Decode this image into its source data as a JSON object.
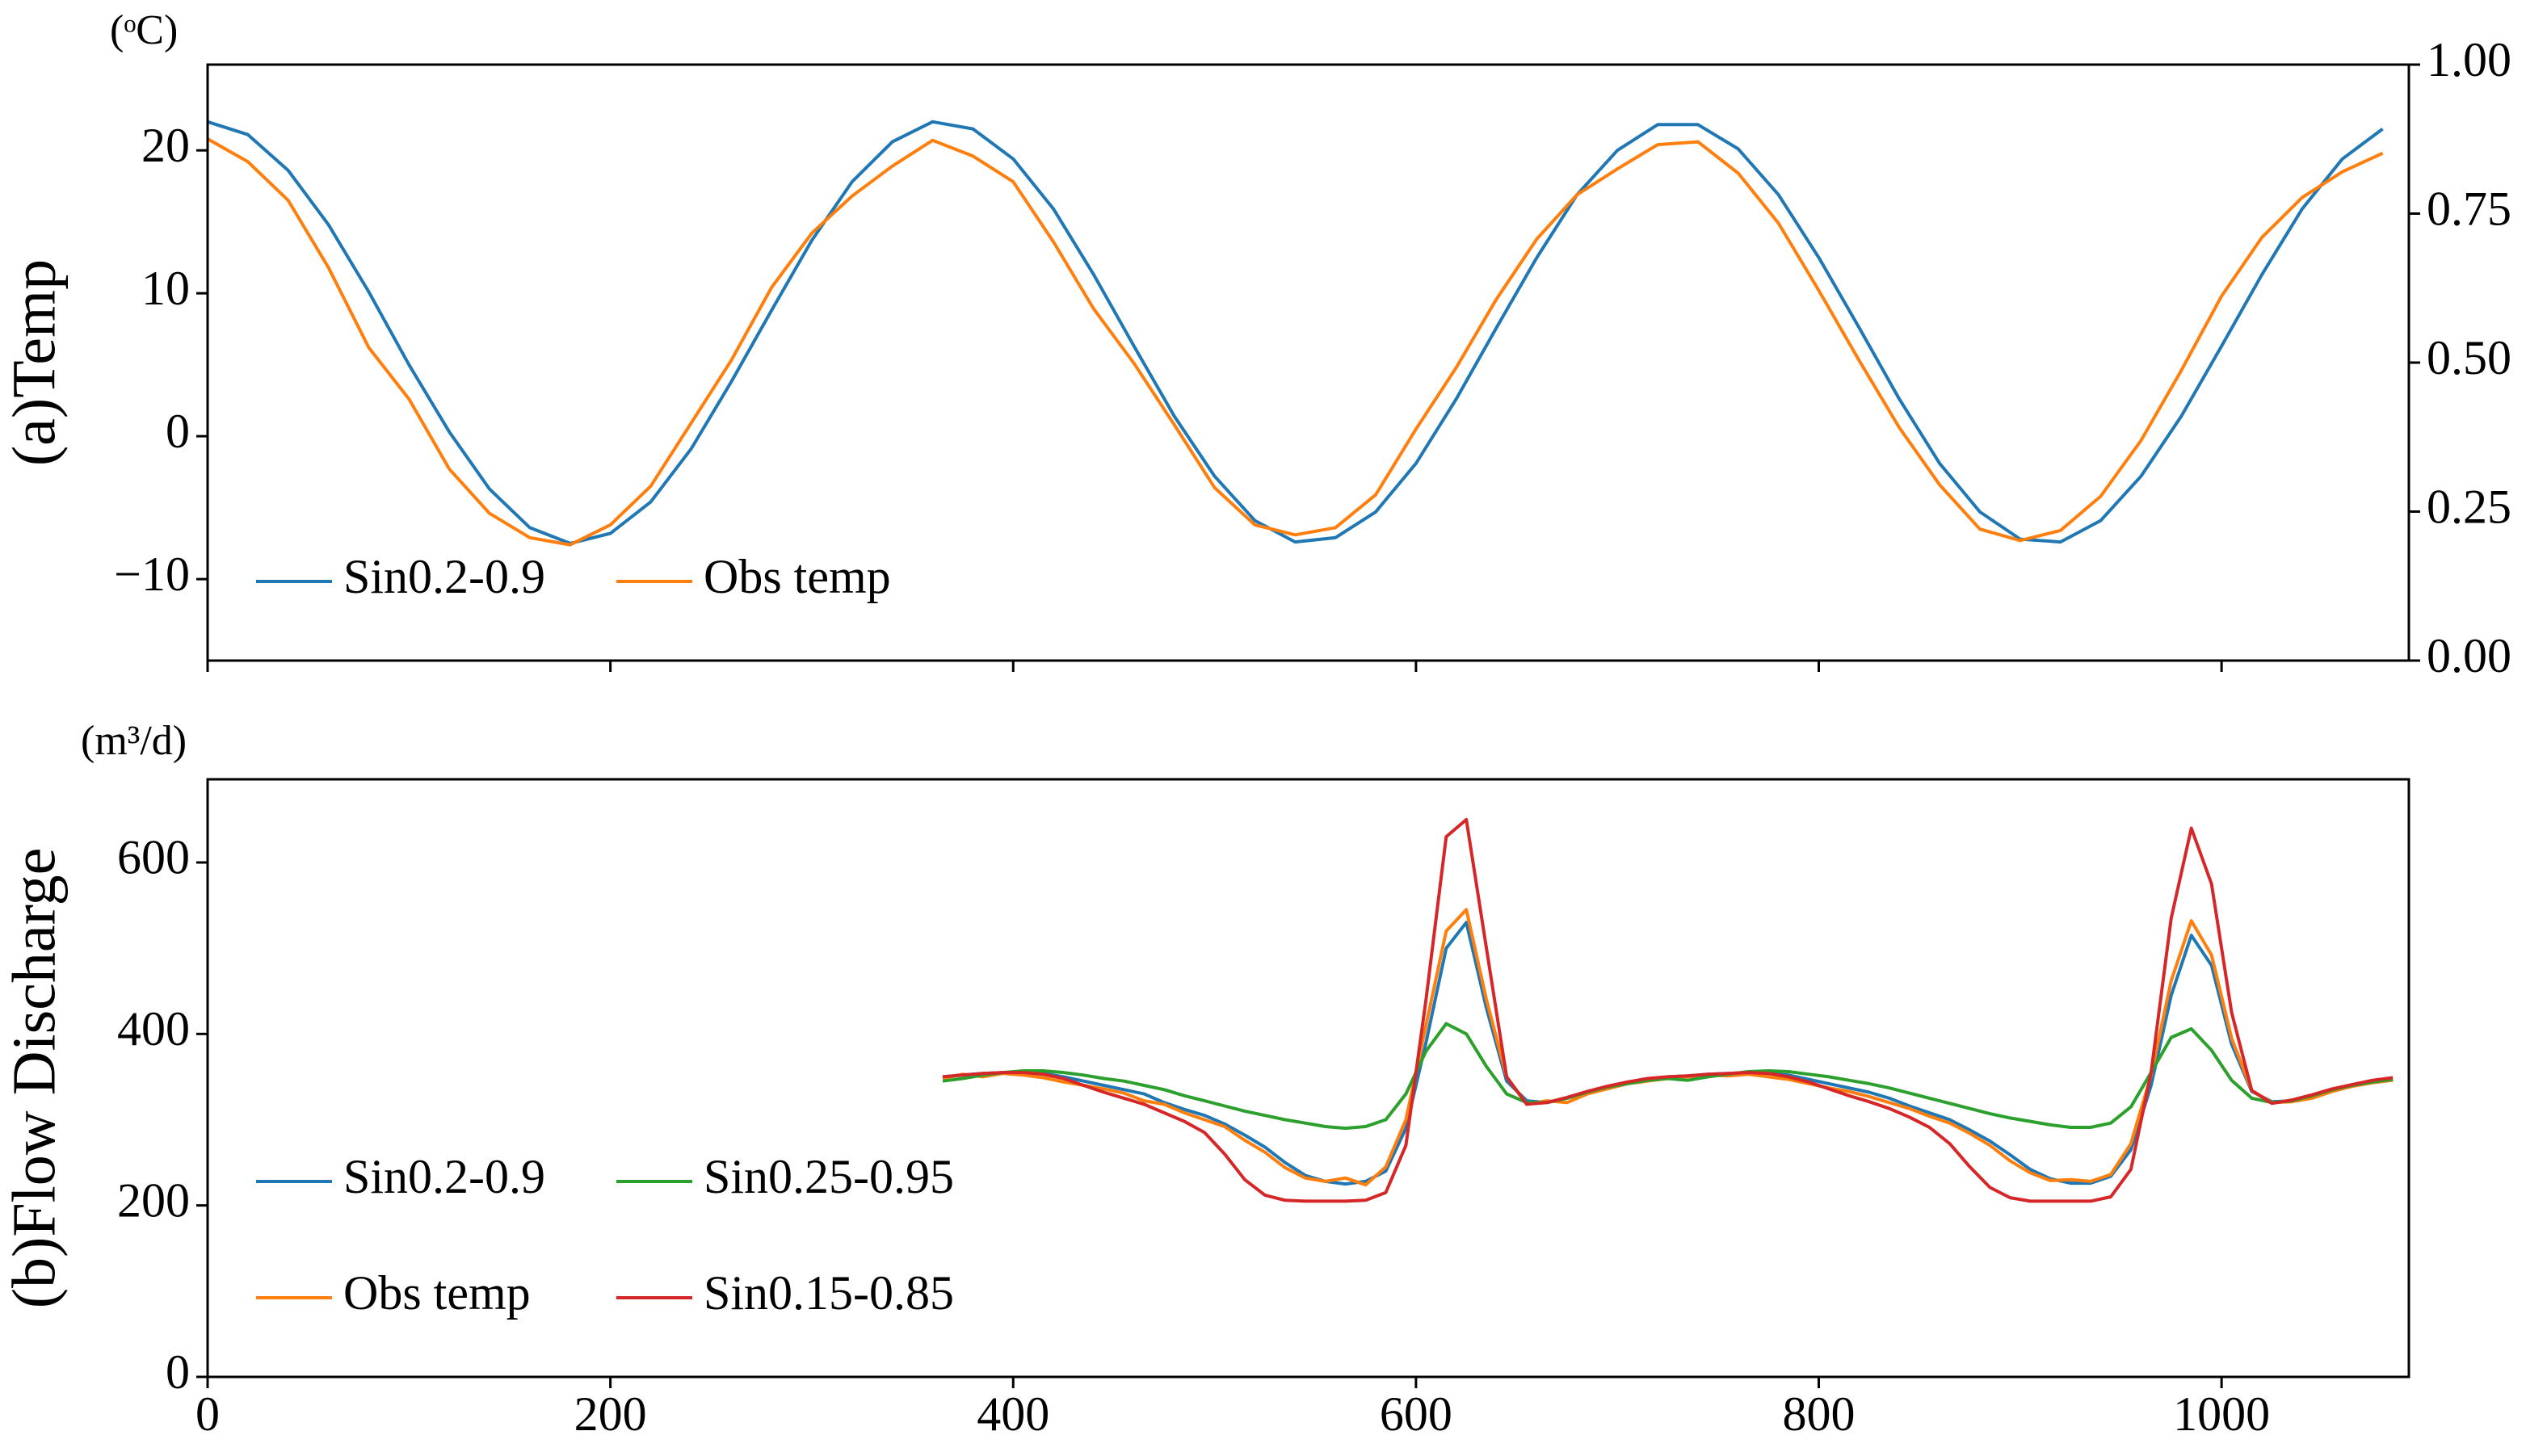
{
  "chart_data": [
    {
      "type": "line",
      "ylabel": "(a)Temp",
      "unit": "(ᵒC)",
      "x": [
        0,
        20,
        40,
        60,
        80,
        100,
        120,
        140,
        160,
        180,
        200,
        220,
        240,
        260,
        280,
        300,
        320,
        340,
        360,
        380,
        400,
        420,
        440,
        460,
        480,
        500,
        520,
        540,
        560,
        580,
        600,
        620,
        640,
        660,
        680,
        700,
        720,
        740,
        760,
        780,
        800,
        820,
        840,
        860,
        880,
        900,
        920,
        940,
        960,
        980,
        1000,
        1020,
        1040,
        1060,
        1080
      ],
      "series": [
        {
          "name": "Sin0.2-0.9",
          "color": "#1f77b4",
          "values": [
            22.0,
            21.1,
            18.6,
            14.8,
            10.1,
            5.0,
            0.3,
            -3.7,
            -6.4,
            -7.5,
            -6.8,
            -4.6,
            -0.9,
            3.8,
            8.8,
            13.7,
            17.8,
            20.6,
            22.0,
            21.5,
            19.4,
            15.9,
            11.3,
            6.3,
            1.4,
            -2.8,
            -5.9,
            -7.4,
            -7.1,
            -5.3,
            -1.9,
            2.6,
            7.6,
            12.5,
            16.9,
            20.0,
            21.8,
            21.8,
            20.1,
            16.9,
            12.5,
            7.6,
            2.6,
            -1.9,
            -5.3,
            -7.2,
            -7.4,
            -5.9,
            -2.8,
            1.4,
            6.3,
            11.3,
            15.9,
            19.4,
            21.5
          ]
        },
        {
          "name": "Obs temp",
          "color": "#ff7f0e",
          "values": [
            20.8,
            19.2,
            16.5,
            11.8,
            6.2,
            2.6,
            -2.3,
            -5.4,
            -7.1,
            -7.6,
            -6.2,
            -3.5,
            0.9,
            5.3,
            10.4,
            14.2,
            16.8,
            18.9,
            20.7,
            19.6,
            17.8,
            13.6,
            8.9,
            5.1,
            0.8,
            -3.6,
            -6.2,
            -6.9,
            -6.4,
            -4.1,
            0.5,
            4.8,
            9.6,
            13.8,
            16.9,
            18.7,
            20.4,
            20.6,
            18.4,
            14.9,
            10.2,
            5.3,
            0.6,
            -3.4,
            -6.5,
            -7.3,
            -6.6,
            -4.2,
            -0.3,
            4.6,
            9.8,
            13.9,
            16.7,
            18.5,
            19.8
          ]
        }
      ],
      "xlim": [
        0,
        1093
      ],
      "ylim": [
        -15.7,
        26
      ],
      "xticks": [
        0,
        200,
        400,
        600,
        800,
        1000
      ],
      "show_xtick_labels": false,
      "yticks": [
        {
          "value": -10,
          "label": "−10"
        },
        0,
        10,
        20
      ],
      "y2lim": [
        0,
        1
      ],
      "y2ticks": [
        {
          "value": 0,
          "label": "0.00"
        },
        0.25,
        {
          "value": 0.5,
          "label": "0.50"
        },
        0.75,
        {
          "value": 1,
          "label": "1.00"
        }
      ],
      "legend": "lower left",
      "legend_columns": 2
    },
    {
      "type": "line",
      "ylabel": "(b)Flow Discharge",
      "unit": "(m³/d)",
      "x": [
        365,
        375,
        385,
        395,
        405,
        415,
        425,
        435,
        445,
        455,
        465,
        475,
        485,
        495,
        505,
        515,
        525,
        535,
        545,
        555,
        565,
        575,
        585,
        595,
        605,
        615,
        625,
        635,
        645,
        655,
        665,
        675,
        685,
        695,
        705,
        715,
        725,
        735,
        745,
        755,
        765,
        775,
        785,
        795,
        805,
        815,
        825,
        835,
        845,
        855,
        865,
        875,
        885,
        895,
        905,
        915,
        925,
        935,
        945,
        955,
        965,
        975,
        985,
        995,
        1005,
        1015,
        1025,
        1035,
        1045,
        1055,
        1065,
        1075,
        1085
      ],
      "series": [
        {
          "name": "Sin0.2-0.9",
          "color": "#1f77b4",
          "values": [
            350,
            352,
            354,
            355,
            355,
            354,
            350,
            345,
            340,
            335,
            330,
            320,
            312,
            305,
            295,
            282,
            268,
            250,
            235,
            228,
            225,
            228,
            240,
            290,
            390,
            500,
            530,
            430,
            345,
            322,
            320,
            325,
            332,
            338,
            343,
            347,
            350,
            351,
            353,
            354,
            355,
            354,
            352,
            347,
            342,
            337,
            332,
            325,
            316,
            308,
            300,
            288,
            275,
            259,
            242,
            231,
            226,
            226,
            234,
            265,
            340,
            445,
            515,
            480,
            388,
            333,
            321,
            322,
            328,
            335,
            340,
            345,
            348
          ]
        },
        {
          "name": "Obs temp",
          "color": "#ff7f0e",
          "values": [
            348,
            353,
            350,
            354,
            352,
            349,
            344,
            340,
            336,
            331,
            322,
            318,
            308,
            300,
            292,
            276,
            262,
            244,
            232,
            228,
            232,
            224,
            245,
            300,
            410,
            520,
            545,
            440,
            350,
            318,
            322,
            320,
            330,
            336,
            342,
            345,
            348,
            350,
            352,
            351,
            353,
            350,
            347,
            342,
            337,
            333,
            327,
            320,
            313,
            304,
            296,
            284,
            270,
            252,
            238,
            229,
            230,
            228,
            236,
            272,
            352,
            462,
            532,
            492,
            395,
            334,
            320,
            321,
            325,
            333,
            339,
            343,
            346
          ]
        },
        {
          "name": "Sin0.25-0.95",
          "color": "#2ca02c",
          "values": [
            345,
            348,
            352,
            355,
            357,
            357,
            355,
            352,
            348,
            345,
            340,
            335,
            328,
            322,
            316,
            310,
            305,
            300,
            296,
            292,
            290,
            292,
            300,
            330,
            380,
            412,
            400,
            362,
            330,
            320,
            320,
            325,
            332,
            338,
            342,
            346,
            348,
            346,
            350,
            353,
            356,
            357,
            356,
            353,
            350,
            346,
            342,
            337,
            331,
            325,
            319,
            313,
            307,
            302,
            298,
            294,
            291,
            291,
            296,
            315,
            355,
            396,
            406,
            381,
            346,
            325,
            320,
            322,
            328,
            335,
            340,
            344,
            347
          ]
        },
        {
          "name": "Sin0.15-0.85",
          "color": "#d62728",
          "values": [
            350,
            352,
            354,
            355,
            355,
            353,
            348,
            340,
            332,
            325,
            318,
            308,
            298,
            285,
            260,
            230,
            212,
            206,
            205,
            205,
            205,
            206,
            215,
            270,
            440,
            630,
            650,
            500,
            350,
            318,
            320,
            326,
            333,
            339,
            344,
            348,
            350,
            351,
            353,
            354,
            355,
            354,
            350,
            344,
            336,
            328,
            321,
            313,
            303,
            291,
            272,
            245,
            221,
            209,
            205,
            205,
            205,
            205,
            210,
            242,
            355,
            535,
            640,
            575,
            425,
            334,
            319,
            323,
            329,
            336,
            341,
            346,
            349
          ]
        }
      ],
      "xlim": [
        0,
        1093
      ],
      "ylim": [
        0,
        697
      ],
      "xticks": [
        0,
        200,
        400,
        600,
        800,
        1000
      ],
      "show_xtick_labels": true,
      "yticks": [
        0,
        200,
        400,
        600
      ],
      "legend": "lower left",
      "legend_columns": 2
    }
  ]
}
